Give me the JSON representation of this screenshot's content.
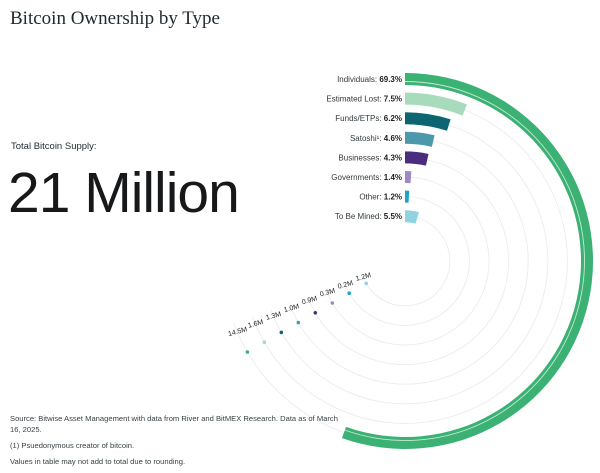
{
  "title": "Bitcoin Ownership by Type",
  "supply": {
    "label": "Total Bitcoin Supply:",
    "value": "21 Million"
  },
  "chart_data": {
    "type": "radial-bar",
    "title": "Bitcoin Ownership by Type",
    "unit": "percent of 21M total supply",
    "series": [
      {
        "name": "Individuals",
        "label": "Individuals:",
        "pct_label": "69.3%",
        "value": 69.3,
        "btc_label": "14.5M",
        "btc": 14.5,
        "color": "#3bb273"
      },
      {
        "name": "Estimated Lost",
        "label": "Estimated Lost:",
        "pct_label": "7.5%",
        "value": 7.5,
        "btc_label": "1.6M",
        "btc": 1.6,
        "color": "#a8dbbc"
      },
      {
        "name": "Funds/ETPs",
        "label": "Funds/ETPs:",
        "pct_label": "6.2%",
        "value": 6.2,
        "btc_label": "1.3M",
        "btc": 1.3,
        "color": "#0e6572"
      },
      {
        "name": "Satoshi",
        "label": "Satoshi¹:",
        "pct_label": "4.6%",
        "value": 4.6,
        "btc_label": "1.0M",
        "btc": 1.0,
        "color": "#4e98ac"
      },
      {
        "name": "Businesses",
        "label": "Businesses:",
        "pct_label": "4.3%",
        "value": 4.3,
        "btc_label": "0.9M",
        "btc": 0.9,
        "color": "#4b2d7f"
      },
      {
        "name": "Governments",
        "label": "Governments:",
        "pct_label": "1.4%",
        "value": 1.4,
        "btc_label": "0.3M",
        "btc": 0.3,
        "color": "#9f88c4"
      },
      {
        "name": "Other",
        "label": "Other:",
        "pct_label": "1.2%",
        "value": 1.2,
        "btc_label": "0.2M",
        "btc": 0.2,
        "color": "#1ba6c8"
      },
      {
        "name": "To Be Mined",
        "label": "To Be Mined:",
        "pct_label": "5.5%",
        "value": 5.5,
        "btc_label": "1.2M",
        "btc": 1.2,
        "color": "#8fd3e0"
      }
    ]
  },
  "footnotes": {
    "source": "Source: Bitwise Asset Management with data from River and BitMEX Research. Data as of March 16, 2025.",
    "note1": "(1) Psuedonymous creator of bitcoin.",
    "note2": "Values in table may not add to total due to rounding."
  }
}
